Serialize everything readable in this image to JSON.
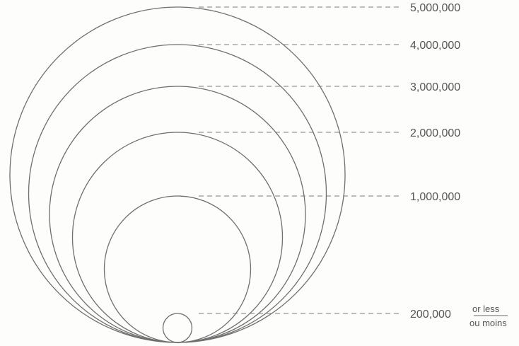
{
  "legend": {
    "title": "",
    "stroke_color": "#6f6f6f",
    "items": [
      {
        "value": 5000000,
        "label": "5,000,000"
      },
      {
        "value": 4000000,
        "label": "4,000,000"
      },
      {
        "value": 3000000,
        "label": "3,000,000"
      },
      {
        "value": 2000000,
        "label": "2,000,000"
      },
      {
        "value": 1000000,
        "label": "1,000,000"
      },
      {
        "value": 200000,
        "label": "200,000",
        "note_top": "or less",
        "note_bottom": "ou moins"
      }
    ]
  }
}
